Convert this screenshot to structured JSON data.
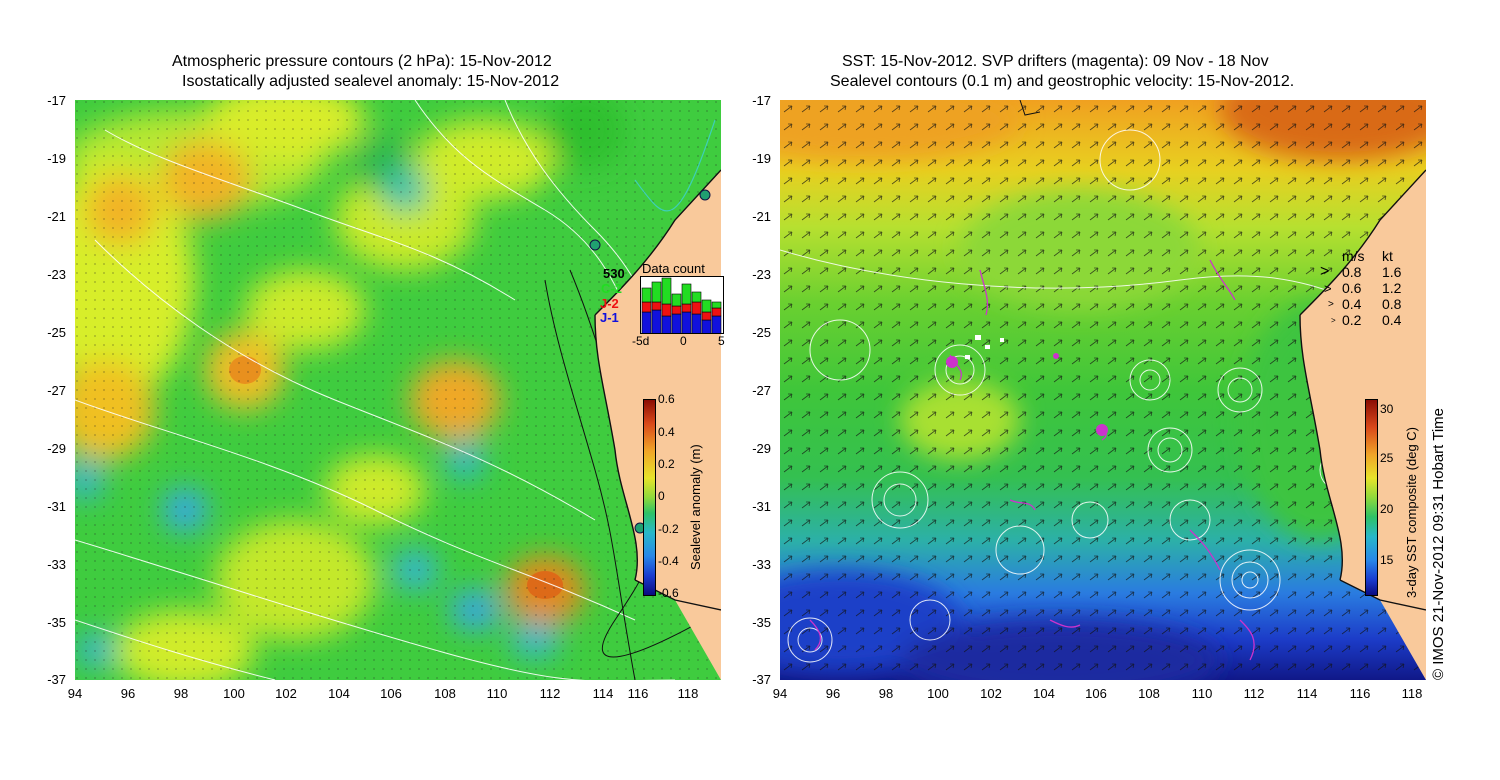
{
  "left_panel": {
    "title_line1": "Atmospheric pressure contours (2 hPa): 15-Nov-2012",
    "title_line2": "Isostatically adjusted sealevel anomaly: 15-Nov-2012",
    "y_ticks": [
      "-17",
      "-19",
      "-21",
      "-23",
      "-25",
      "-27",
      "-29",
      "-31",
      "-33",
      "-35",
      "-37"
    ],
    "x_ticks": [
      "94",
      "96",
      "98",
      "100",
      "102",
      "104",
      "106",
      "108",
      "110",
      "112",
      "114",
      "116",
      "118"
    ],
    "colorbar": {
      "label": "Sealevel anomaly (m)",
      "ticks": [
        "0.6",
        "0.4",
        "0.2",
        "0",
        "-0.2",
        "-0.4",
        "-0.6"
      ]
    },
    "data_count": {
      "title": "Data count",
      "series_labels": [
        "530",
        "C-2",
        "J-2",
        "J-1"
      ],
      "series_colors": [
        "#000000",
        "#22dd22",
        "#ee1111",
        "#1111dd"
      ],
      "x_ticks": [
        "-5d",
        "0",
        "5"
      ]
    }
  },
  "right_panel": {
    "title_line1": "SST: 15-Nov-2012. SVP drifters (magenta): 09 Nov - 18 Nov",
    "title_line2": "Sealevel contours (0.1 m) and geostrophic velocity: 15-Nov-2012.",
    "y_ticks": [
      "-17",
      "-19",
      "-21",
      "-23",
      "-25",
      "-27",
      "-29",
      "-31",
      "-33",
      "-35",
      "-37"
    ],
    "x_ticks": [
      "94",
      "96",
      "98",
      "100",
      "102",
      "104",
      "106",
      "108",
      "110",
      "112",
      "114",
      "116",
      "118"
    ],
    "velocity_legend": {
      "header_ms": "m/s",
      "header_kt": "kt",
      "rows": [
        {
          "ms": "0.8",
          "kt": "1.6"
        },
        {
          "ms": "0.6",
          "kt": "1.2"
        },
        {
          "ms": "0.4",
          "kt": "0.8"
        },
        {
          "ms": "0.2",
          "kt": "0.4"
        }
      ]
    },
    "colorbar": {
      "label": "3-day SST composite (deg C)",
      "ticks": [
        "30",
        "25",
        "20",
        "15"
      ]
    }
  },
  "credit": "© IMOS 21-Nov-2012 09:31 Hobart Time",
  "colors": {
    "land": "#f9c99b",
    "contour": "#ffffff",
    "drifter": "#cc33cc"
  }
}
